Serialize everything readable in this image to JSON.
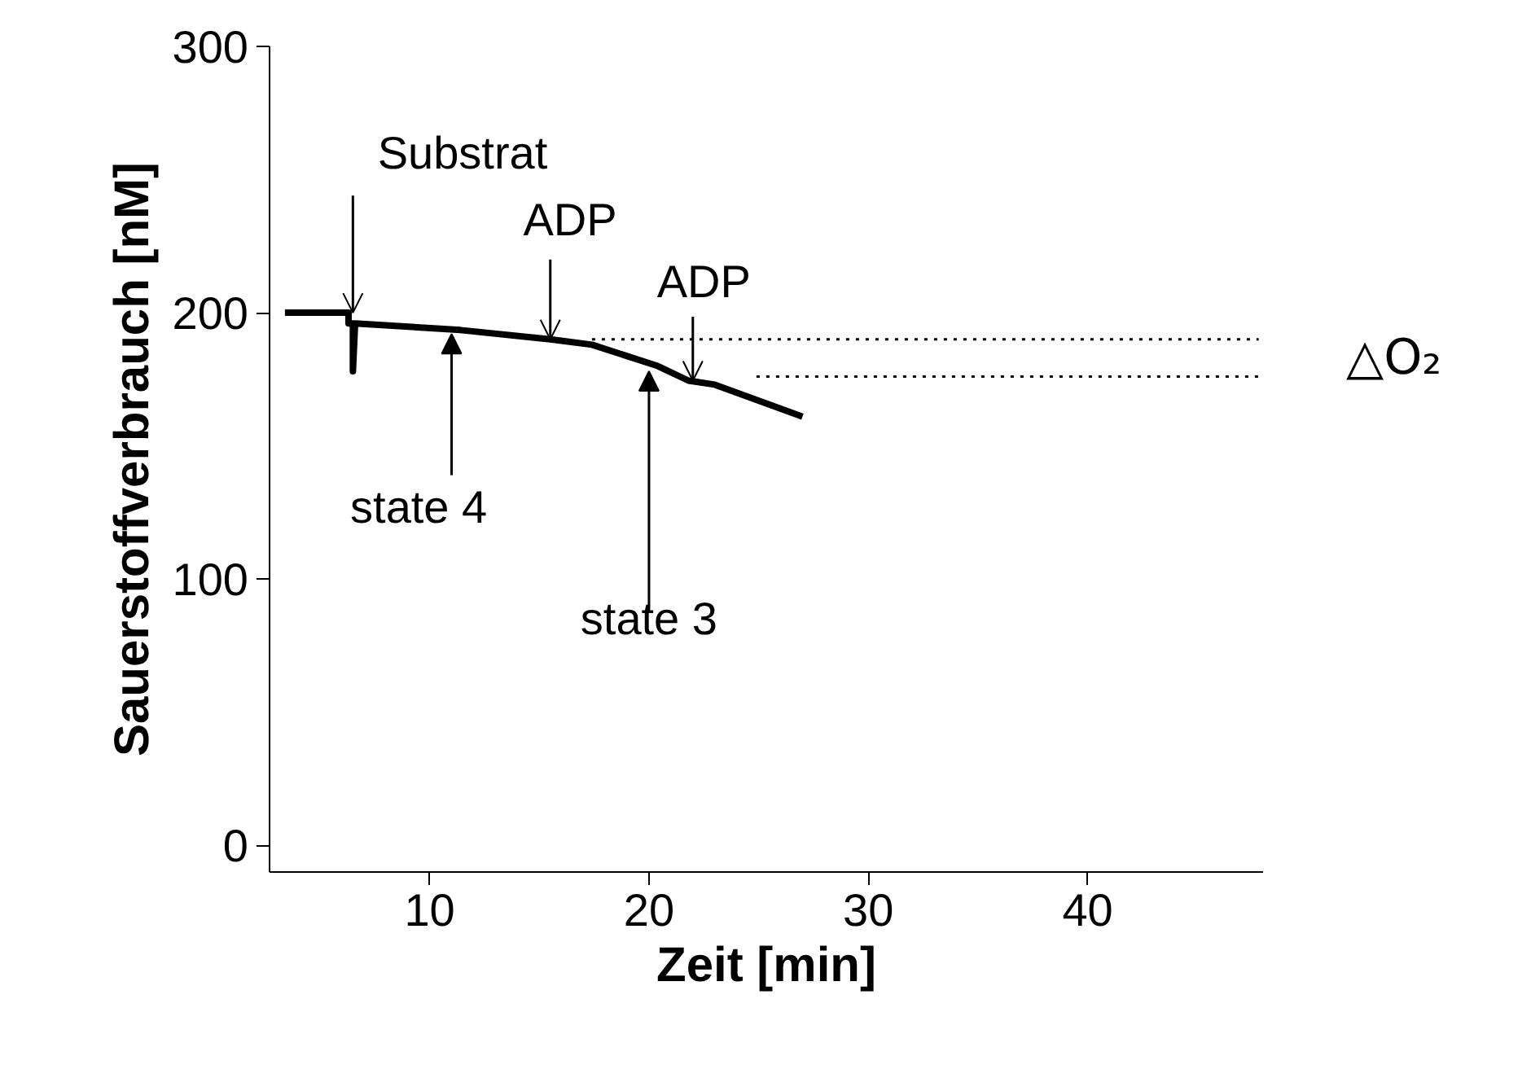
{
  "chart_data": {
    "type": "line",
    "xlabel": "Zeit [min]",
    "ylabel": "Sauerstoffverbrauch [nM]",
    "xlim": [
      2.7,
      48
    ],
    "ylim": [
      -10,
      300
    ],
    "xticks": [
      10,
      20,
      30,
      40
    ],
    "yticks": [
      0,
      100,
      200,
      300
    ],
    "grid": false,
    "marker": "none",
    "series": [
      {
        "color": "#000000",
        "line_style": "solid",
        "x": [
          3.4,
          6.3,
          6.3,
          6.5,
          6.5,
          6.6,
          11.4,
          15.5,
          17.4,
          20.4,
          21.8,
          23,
          27
        ],
        "values": [
          200,
          200,
          196,
          196,
          178,
          196,
          193.5,
          190,
          188,
          180,
          174.5,
          173,
          161
        ]
      },
      {
        "color": "#000000",
        "line_style": "dotted",
        "x": [
          17.4,
          47.8
        ],
        "values": [
          190,
          190
        ]
      },
      {
        "color": "#000000",
        "line_style": "dotted",
        "x": [
          24.9,
          47.8
        ],
        "values": [
          176,
          176
        ]
      }
    ],
    "annotations": [
      {
        "text": "Substrat",
        "x": 6.5,
        "y": 200
      },
      {
        "text": "ADP",
        "x": 15.5,
        "y": 190
      },
      {
        "text": "ADP",
        "x": 22,
        "y": 174.5
      },
      {
        "text": "state 4",
        "x": 11,
        "y": 192
      },
      {
        "text": "state 3",
        "x": 20,
        "y": 178
      },
      "△O₂"
    ]
  }
}
